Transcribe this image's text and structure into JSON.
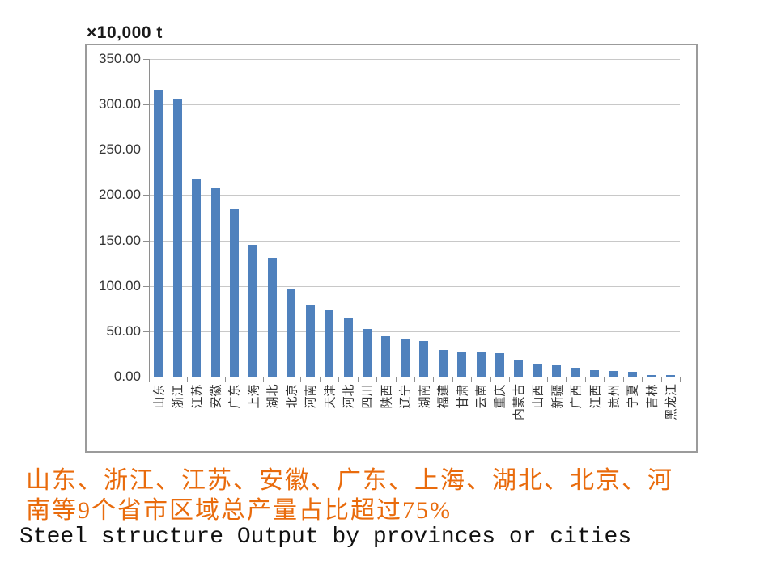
{
  "unit_label": "×10,000 t",
  "captions": {
    "cn_line1": "山东、浙江、江苏、安徽、广东、上海、湖北、北京、河",
    "cn_line2": "南等9个省市区域总产量占比超过75%",
    "en": "Steel structure Output by provinces or cities"
  },
  "colors": {
    "bar": "#4f81bd",
    "gridline": "#c8c8c8",
    "axis": "#8e8e8e",
    "frame_border": "#9b9b9b",
    "tick_text": "#333333",
    "caption_orange": "#e96b0c",
    "caption_black": "#111111"
  },
  "chart_data": {
    "type": "bar",
    "title": "Steel structure Output by provinces or cities",
    "unit": "×10,000 t",
    "categories": [
      "山东",
      "浙江",
      "江苏",
      "安徽",
      "广东",
      "上海",
      "湖北",
      "北京",
      "河南",
      "天津",
      "河北",
      "四川",
      "陕西",
      "辽宁",
      "湖南",
      "福建",
      "甘肃",
      "云南",
      "重庆",
      "内蒙古",
      "山西",
      "新疆",
      "广西",
      "江西",
      "贵州",
      "宁夏",
      "吉林",
      "黑龙江"
    ],
    "values": [
      316,
      306,
      218,
      208,
      185,
      145,
      131,
      96,
      79,
      74,
      65,
      53,
      45,
      41,
      39,
      29,
      28,
      27,
      26,
      19,
      14,
      13,
      10,
      7,
      6,
      5,
      2,
      1.5
    ],
    "ylim": [
      0,
      350
    ],
    "ytick_step": 50,
    "ytick_labels": [
      "350.00",
      "300.00",
      "250.00",
      "200.00",
      "150.00",
      "100.00",
      "50.00",
      "0.00"
    ],
    "grid": true,
    "legend": false,
    "bar_color": "#4f81bd"
  }
}
